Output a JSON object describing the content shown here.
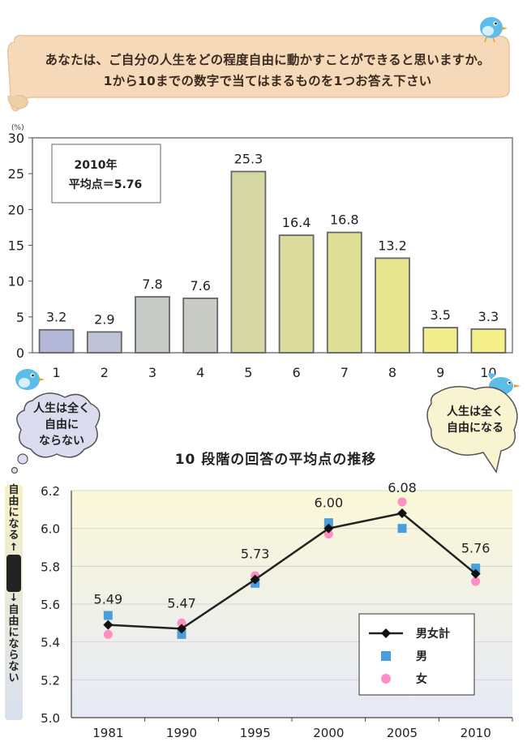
{
  "question": {
    "line1": "あなたは、ご自分の人生をどの程度自由に動かすことができると思いますか。",
    "line2": "1から10までの数字で当てはまるものを1つお答え下さい"
  },
  "bubbles": {
    "left": [
      "人生は全く",
      "自由に",
      "ならない"
    ],
    "right": [
      "人生は全く",
      "自由になる"
    ]
  },
  "side_label": {
    "top": "自由になる",
    "mid": "人生は",
    "bottom": "自由にならない",
    "arrow_up": "↑",
    "arrow_down": "↓"
  },
  "colors": {
    "banner": "#f6d9b8",
    "bar_blue": "#b3b8d9",
    "bar_grey": "#c7cbc7",
    "bar_olive": "#d6d8a3",
    "bar_yellow": "#f2ef8e",
    "line_total": "#222222",
    "marker_male": "#4a9ee0",
    "marker_female": "#ff8ec4",
    "bird_blue": "#5bbde8"
  },
  "chart_data": [
    {
      "type": "bar",
      "ylabel": "(%)",
      "ylim": [
        0,
        30
      ],
      "yticks": [
        0,
        5,
        10,
        15,
        20,
        25,
        30
      ],
      "categories": [
        "1",
        "2",
        "3",
        "4",
        "5",
        "6",
        "7",
        "8",
        "9",
        "10"
      ],
      "values": [
        3.2,
        2.9,
        7.8,
        7.6,
        25.3,
        16.4,
        16.8,
        13.2,
        3.5,
        3.3
      ],
      "value_labels": [
        "3.2",
        "2.9",
        "7.8",
        "7.6",
        "25.3",
        "16.4",
        "16.8",
        "13.2",
        "3.5",
        "3.3"
      ],
      "annotation": [
        "2010年",
        "平均点＝5.76"
      ],
      "grid": false
    },
    {
      "type": "line",
      "title": "10 段階の回答の平均点の推移",
      "categories": [
        "1981",
        "1990",
        "1995",
        "2000",
        "2005",
        "2010"
      ],
      "ylim": [
        5.0,
        6.2
      ],
      "yticks": [
        "5.0",
        "5.2",
        "5.4",
        "5.6",
        "5.8",
        "6.0",
        "6.2"
      ],
      "grid": true,
      "legend_position": "bottom-right",
      "series": [
        {
          "name": "男女計",
          "values": [
            5.49,
            5.47,
            5.73,
            6.0,
            6.08,
            5.76
          ],
          "labels": [
            "5.49",
            "5.47",
            "5.73",
            "6.00",
            "6.08",
            "5.76"
          ]
        },
        {
          "name": "男",
          "values": [
            5.54,
            5.44,
            5.71,
            6.03,
            6.0,
            5.79
          ]
        },
        {
          "name": "女",
          "values": [
            5.44,
            5.5,
            5.75,
            5.97,
            6.14,
            5.72
          ]
        }
      ]
    }
  ]
}
